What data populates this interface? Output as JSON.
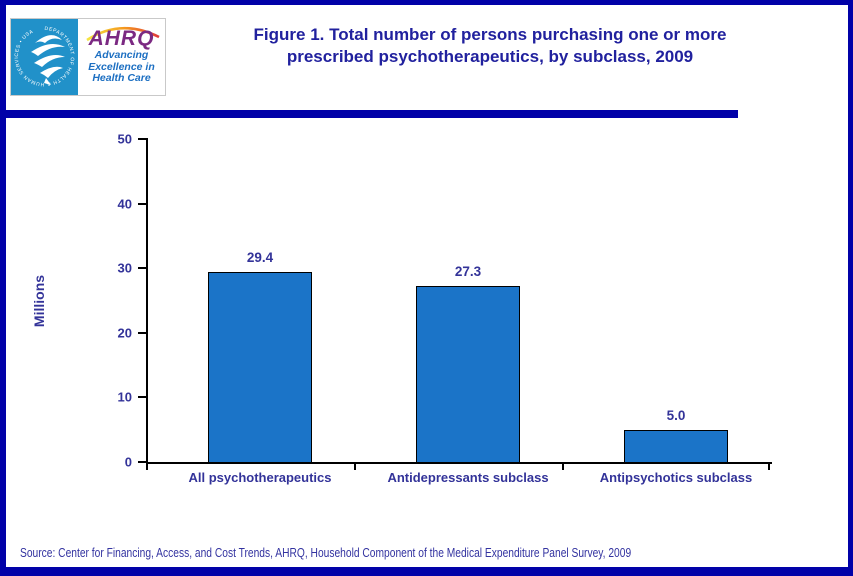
{
  "header": {
    "title_line1": "Figure 1. Total number of persons purchasing one or more",
    "title_line2": "prescribed psychotherapeutics, by subclass, 2009"
  },
  "logo": {
    "seal_text": "DEPARTMENT OF HEALTH & HUMAN SERVICES • USA",
    "wordmark": "AHRQ",
    "tagline": [
      "Advancing",
      "Excellence in",
      "Health Care"
    ]
  },
  "chart_data": {
    "type": "bar",
    "title": "Figure 1. Total number of persons purchasing one or more prescribed psychotherapeutics, by subclass, 2009",
    "categories": [
      "All psychotherapeutics",
      "Antidepressants subclass",
      "Antipsychotics subclass"
    ],
    "values": [
      29.4,
      27.3,
      5.0
    ],
    "value_labels": [
      "29.4",
      "27.3",
      "5.0"
    ],
    "xlabel": "",
    "ylabel": "Millions",
    "ylim": [
      0,
      50
    ],
    "yticks": [
      0,
      10,
      20,
      30,
      40,
      50
    ],
    "grid": false,
    "legend": "none",
    "bar_color": "#1B74C8"
  },
  "footer": {
    "source": "Source: Center for Financing, Access, and Cost Trends, AHRQ, Household Component of the Medical Expenditure Panel Survey,  2009"
  },
  "colors": {
    "border_navy": "#0101A8",
    "title_navy": "#21219E",
    "chart_text_navy": "#333399",
    "bar_fill": "#1B74C8",
    "seal_blue": "#2191C9",
    "ahrq_purple": "#7B2982",
    "tagline_blue": "#1C6FC2"
  }
}
